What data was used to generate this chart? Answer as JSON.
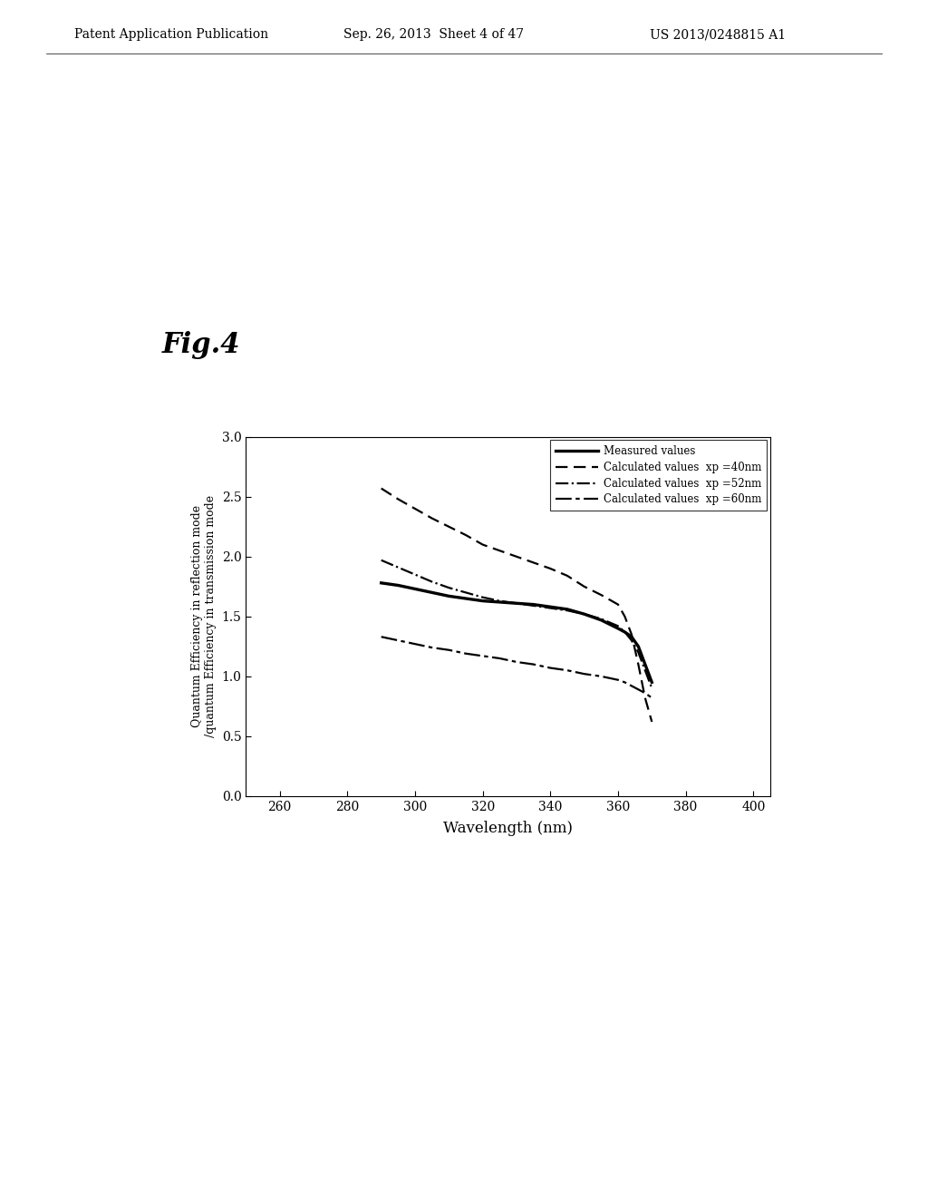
{
  "xlabel": "Wavelength (nm)",
  "ylabel": "Quantum Efficiency in reflection mode\n/quantum Efficiency in transmission mode",
  "xlim": [
    250,
    405
  ],
  "ylim": [
    0.0,
    3.0
  ],
  "xticks": [
    260,
    280,
    300,
    320,
    340,
    360,
    380,
    400
  ],
  "yticks": [
    0.0,
    0.5,
    1.0,
    1.5,
    2.0,
    2.5,
    3.0
  ],
  "background_color": "#ffffff",
  "header_left": "Patent Application Publication",
  "header_center": "Sep. 26, 2013  Sheet 4 of 47",
  "header_right": "US 2013/0248815 A1",
  "measured_x": [
    290,
    295,
    300,
    305,
    310,
    315,
    320,
    325,
    330,
    335,
    340,
    345,
    350,
    355,
    360,
    362,
    364,
    366,
    368,
    370
  ],
  "measured_y": [
    1.78,
    1.76,
    1.73,
    1.7,
    1.67,
    1.65,
    1.63,
    1.62,
    1.61,
    1.6,
    1.58,
    1.56,
    1.52,
    1.47,
    1.4,
    1.37,
    1.33,
    1.25,
    1.1,
    0.95
  ],
  "calc40_x": [
    290,
    295,
    300,
    305,
    310,
    315,
    320,
    325,
    330,
    335,
    340,
    345,
    350,
    355,
    360,
    362,
    364,
    366,
    368,
    370
  ],
  "calc40_y": [
    2.57,
    2.48,
    2.4,
    2.32,
    2.25,
    2.18,
    2.1,
    2.05,
    2.0,
    1.95,
    1.9,
    1.84,
    1.75,
    1.68,
    1.6,
    1.5,
    1.35,
    1.1,
    0.82,
    0.62
  ],
  "calc52_x": [
    290,
    295,
    300,
    305,
    310,
    315,
    320,
    325,
    330,
    335,
    340,
    345,
    350,
    355,
    360,
    362,
    364,
    366,
    368,
    370
  ],
  "calc52_y": [
    1.97,
    1.91,
    1.85,
    1.79,
    1.74,
    1.7,
    1.66,
    1.63,
    1.61,
    1.59,
    1.57,
    1.55,
    1.52,
    1.48,
    1.42,
    1.37,
    1.3,
    1.2,
    1.05,
    0.9
  ],
  "calc60_x": [
    290,
    295,
    300,
    305,
    310,
    315,
    320,
    325,
    330,
    335,
    340,
    345,
    350,
    355,
    360,
    362,
    364,
    366,
    368,
    370
  ],
  "calc60_y": [
    1.33,
    1.3,
    1.27,
    1.24,
    1.22,
    1.19,
    1.17,
    1.15,
    1.12,
    1.1,
    1.07,
    1.05,
    1.02,
    1.0,
    0.97,
    0.95,
    0.92,
    0.89,
    0.86,
    0.82
  ],
  "legend_labels": [
    "Measured values",
    "Calculated values  xp =40nm",
    "Calculated values  xp =52nm",
    "Calculated values  xp =60nm"
  ],
  "line_color": "#000000",
  "fig_label": "Fig.4"
}
